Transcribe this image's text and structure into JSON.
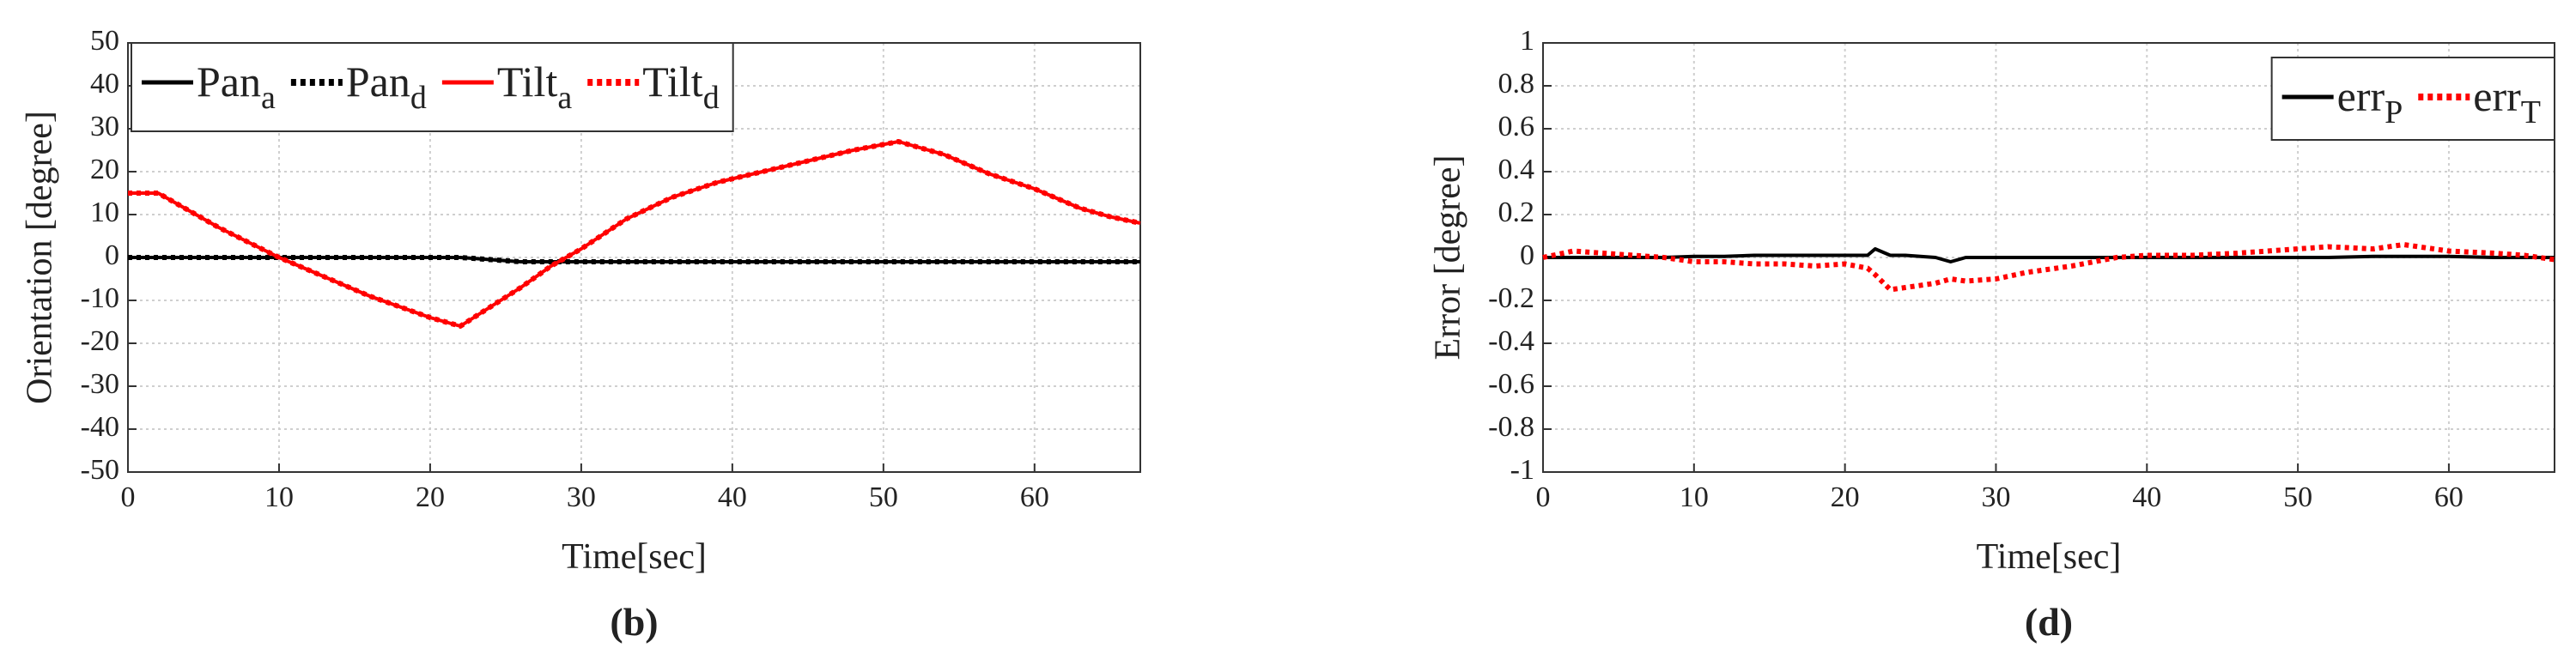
{
  "chart_data": [
    {
      "type": "line",
      "caption": "(b)",
      "xlabel": "Time[sec]",
      "ylabel": "Orientation [degree]",
      "xlim": [
        0,
        67
      ],
      "ylim": [
        -50,
        50
      ],
      "xticks": [
        0,
        10,
        20,
        30,
        40,
        50,
        60
      ],
      "yticks": [
        -50,
        -40,
        -30,
        -20,
        -10,
        0,
        10,
        20,
        30,
        40,
        50
      ],
      "grid": true,
      "legend": "top-left",
      "x": [
        0,
        2,
        4,
        6,
        8,
        10,
        12,
        14,
        16,
        18,
        20,
        22,
        24,
        26,
        28,
        30,
        33,
        36,
        39,
        42,
        45,
        48,
        51,
        54,
        57,
        60,
        63,
        65,
        67
      ],
      "series": [
        {
          "name": "Pan",
          "subscript": "a",
          "color": "#000000",
          "style": "solid",
          "values": [
            0,
            0,
            0,
            0,
            0,
            0,
            0,
            0,
            0,
            0,
            0,
            0,
            -0.5,
            -1,
            -1,
            -1,
            -1,
            -1,
            -1,
            -1,
            -1,
            -1,
            -1,
            -1,
            -1,
            -1,
            -1,
            -1,
            -1
          ]
        },
        {
          "name": "Pan",
          "subscript": "d",
          "color": "#000000",
          "style": "dotted",
          "values": [
            0,
            0,
            0,
            0,
            0,
            0,
            0,
            0,
            0,
            0,
            0,
            0,
            -0.5,
            -1,
            -1,
            -1,
            -1,
            -1,
            -1,
            -1,
            -1,
            -1,
            -1,
            -1,
            -1,
            -1,
            -1,
            -1,
            -1
          ]
        },
        {
          "name": "Tilt",
          "subscript": "a",
          "color": "#ff0000",
          "style": "solid",
          "values": [
            15,
            15,
            11,
            7,
            3.5,
            0,
            -3,
            -6,
            -9,
            -11.5,
            -14,
            -16,
            -11.5,
            -7,
            -2,
            2,
            9,
            14,
            17.5,
            20,
            22.5,
            25,
            27,
            24,
            19.5,
            16,
            11.5,
            9.5,
            8
          ]
        },
        {
          "name": "Tilt",
          "subscript": "d",
          "color": "#ff0000",
          "style": "dotted",
          "values": [
            15,
            15,
            11,
            7,
            3.5,
            0,
            -3,
            -6,
            -9,
            -11.5,
            -14,
            -16,
            -11.5,
            -7,
            -2,
            2,
            9,
            14,
            17.5,
            20,
            22.5,
            25,
            27,
            24,
            19.5,
            16,
            11.5,
            9.5,
            8
          ]
        }
      ]
    },
    {
      "type": "line",
      "caption": "(d)",
      "xlabel": "Time[sec]",
      "ylabel": "Error [degree]",
      "xlim": [
        0,
        67
      ],
      "ylim": [
        -1,
        1
      ],
      "xticks": [
        0,
        10,
        20,
        30,
        40,
        50,
        60
      ],
      "yticks": [
        -1,
        -0.8,
        -0.6,
        -0.4,
        -0.2,
        0,
        0.2,
        0.4,
        0.6,
        0.8,
        1
      ],
      "grid": true,
      "legend": "top-right",
      "x": [
        0,
        2,
        4,
        6,
        8,
        10,
        12,
        14,
        16,
        18,
        20,
        21.5,
        22,
        23,
        24,
        26,
        27,
        28,
        30,
        32,
        35,
        38,
        40,
        43,
        46,
        50,
        52,
        55,
        57,
        60,
        63,
        65,
        67
      ],
      "series": [
        {
          "name": "err",
          "subscript": "P",
          "color": "#000000",
          "style": "solid",
          "values": [
            0,
            0,
            0,
            0,
            0,
            0.005,
            0.005,
            0.01,
            0.01,
            0.01,
            0.01,
            0.01,
            0.04,
            0.01,
            0.01,
            0,
            -0.02,
            0,
            0,
            0,
            0,
            0,
            0,
            0,
            0,
            0,
            0,
            0.005,
            0.005,
            0.005,
            0,
            0,
            0
          ]
        },
        {
          "name": "err",
          "subscript": "T",
          "color": "#ff0000",
          "style": "dotted",
          "values": [
            0,
            0.03,
            0.02,
            0.01,
            0,
            -0.02,
            -0.02,
            -0.03,
            -0.03,
            -0.04,
            -0.03,
            -0.05,
            -0.08,
            -0.15,
            -0.14,
            -0.12,
            -0.1,
            -0.11,
            -0.1,
            -0.07,
            -0.04,
            0,
            0.01,
            0.01,
            0.02,
            0.04,
            0.05,
            0.04,
            0.06,
            0.03,
            0.02,
            0.01,
            -0.01
          ]
        }
      ]
    }
  ]
}
